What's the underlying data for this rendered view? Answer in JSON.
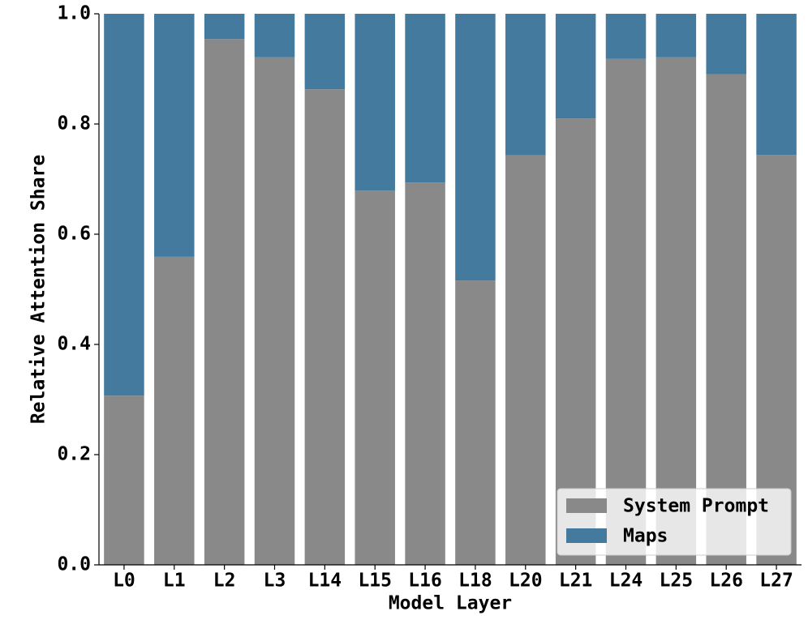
{
  "chart_data": {
    "type": "stacked_bar",
    "x_label": "Model Layer",
    "y_label": "Relative Attention Share",
    "categories": [
      "L0",
      "L1",
      "L2",
      "L3",
      "L14",
      "L15",
      "L16",
      "L18",
      "L20",
      "L21",
      "L24",
      "L25",
      "L26",
      "L27"
    ],
    "series": [
      {
        "name": "System Prompt",
        "color": "#898989",
        "values": [
          0.307,
          0.559,
          0.954,
          0.921,
          0.863,
          0.679,
          0.694,
          0.516,
          0.743,
          0.81,
          0.918,
          0.921,
          0.89,
          0.744
        ]
      },
      {
        "name": "Maps",
        "color": "#437a9e",
        "values": [
          0.693,
          0.441,
          0.046,
          0.079,
          0.137,
          0.321,
          0.306,
          0.484,
          0.257,
          0.19,
          0.082,
          0.079,
          0.11,
          0.256
        ]
      }
    ],
    "ylim": [
      0,
      1
    ],
    "yticks": [
      {
        "value": 0,
        "label": "0.0"
      },
      0.2,
      0.4,
      0.6,
      0.8,
      {
        "value": 1,
        "label": "1.0"
      }
    ],
    "legend": "lower right"
  }
}
